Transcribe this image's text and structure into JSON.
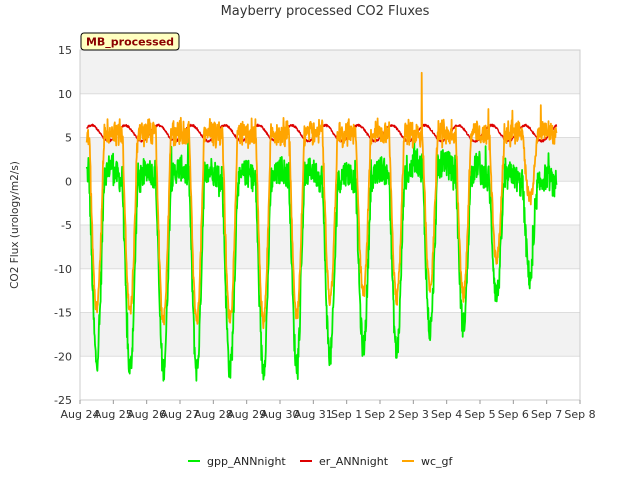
{
  "chart_data": {
    "type": "line",
    "title": "Mayberry processed CO2 Fluxes",
    "ylabel": "CO2 Flux (urology/m2/s)",
    "xlabel": "",
    "badge": "MB_processed",
    "xlim": [
      0,
      15
    ],
    "ylim": [
      -25,
      15
    ],
    "y_ticks": [
      15,
      10,
      5,
      0,
      -5,
      -10,
      -15,
      -20,
      -25
    ],
    "x_ticks": [
      "Aug 24",
      "Aug 25",
      "Aug 26",
      "Aug 27",
      "Aug 28",
      "Aug 29",
      "Aug 30",
      "Aug 31",
      "Sep 1",
      "Sep 2",
      "Sep 3",
      "Sep 4",
      "Sep 5",
      "Sep 6",
      "Sep 7",
      "Sep 8"
    ],
    "grid": true,
    "legend_position": "bottom-center",
    "series": [
      {
        "name": "gpp_ANNnight",
        "color": "#00ee00",
        "daily_min": [
          -20.5,
          -21.5,
          -21.5,
          -21.5,
          -21.5,
          -21.5,
          -21.0,
          -20.0,
          -19.0,
          -19.5,
          -17.0,
          -16.5,
          -13.0,
          -11.0
        ],
        "daily_max": [
          2.0,
          1.0,
          1.5,
          1.5,
          1.0,
          1.0,
          1.5,
          1.0,
          1.0,
          1.5,
          2.5,
          2.0,
          1.0,
          0.5
        ],
        "x_end": 14.3
      },
      {
        "name": "er_ANNnight",
        "color": "#dd0000",
        "mean": 5.5,
        "amplitude": 0.9,
        "x_end": 14.3
      },
      {
        "name": "wc_gf",
        "color": "#ffa500",
        "daily_min": [
          -14.5,
          -15.0,
          -16.0,
          -16.0,
          -16.0,
          -16.0,
          -15.5,
          -13.5,
          -13.0,
          -13.5,
          -12.0,
          -13.0,
          -9.0,
          -2.0
        ],
        "daily_max": [
          8.5,
          6.5,
          6.5,
          6.5,
          6.0,
          6.0,
          6.0,
          6.0,
          6.0,
          6.5,
          13.0,
          8.5,
          7.5,
          8.0
        ],
        "x_end": 14.3
      }
    ]
  }
}
